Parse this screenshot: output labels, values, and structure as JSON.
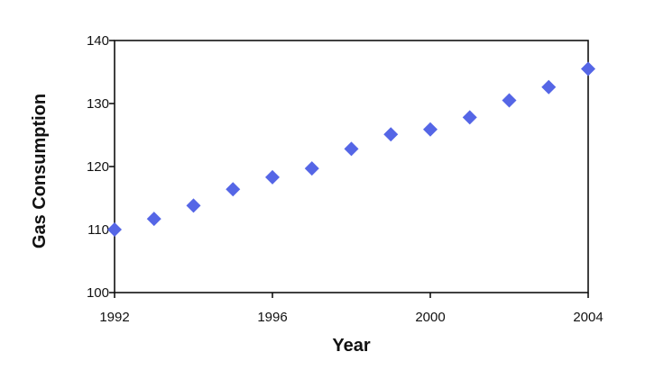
{
  "chart_data": {
    "type": "scatter",
    "xlabel": "Year",
    "ylabel": "Gas Consumption",
    "xlim": [
      1992,
      2004
    ],
    "ylim": [
      100,
      140
    ],
    "xticks": [
      1992,
      1996,
      2000,
      2004
    ],
    "yticks": [
      100,
      110,
      120,
      130,
      140
    ],
    "grid": false,
    "legend": "none",
    "marker": "diamond",
    "marker_color": "#5566e6",
    "series": [
      {
        "x": [
          1992,
          1993,
          1994,
          1995,
          1996,
          1997,
          1998,
          1999,
          2000,
          2001,
          2002,
          2003,
          2004
        ],
        "y": [
          110.0,
          111.7,
          113.8,
          116.4,
          118.3,
          119.7,
          122.8,
          125.1,
          125.9,
          127.8,
          130.5,
          132.6,
          135.5
        ]
      }
    ]
  }
}
